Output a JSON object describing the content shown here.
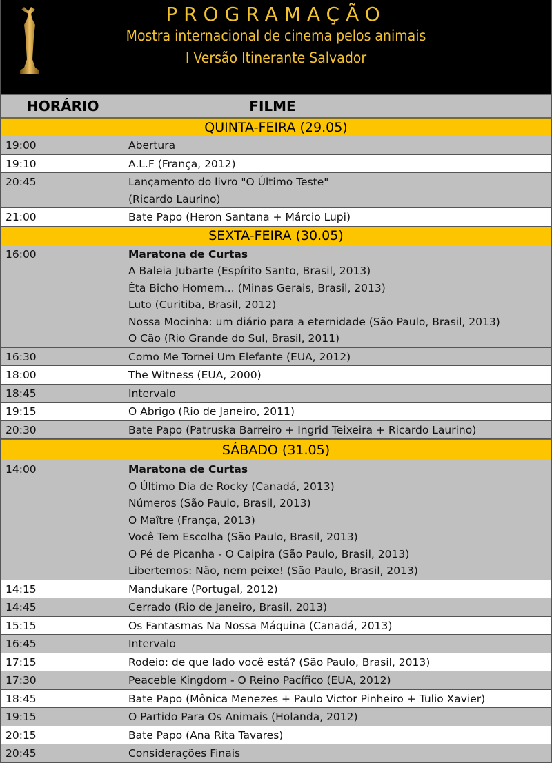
{
  "header": {
    "title": "PROGRAMAÇÃO",
    "subtitle": "Mostra internacional de cinema pelos animais",
    "edition": "I Versão Itinerante Salvador"
  },
  "columns": {
    "time": "HORÁRIO",
    "film": "FILME"
  },
  "colors": {
    "accent": "#fcc500",
    "header_bg": "#000000",
    "title_text": "#f2c12e",
    "shade": "#c0c0c0"
  },
  "days": [
    {
      "label": "QUINTA-FEIRA (29.05)",
      "rows": [
        {
          "time": "19:00",
          "shaded": true,
          "lines": [
            "Abertura"
          ]
        },
        {
          "time": "19:10",
          "shaded": false,
          "lines": [
            "A.L.F (França, 2012)"
          ]
        },
        {
          "time": "20:45",
          "shaded": true,
          "lines": [
            "Lançamento do livro \"O Último Teste\"",
            "(Ricardo Laurino)"
          ]
        },
        {
          "time": "21:00",
          "shaded": false,
          "lines": [
            "Bate Papo (Heron Santana + Márcio Lupi)"
          ]
        }
      ]
    },
    {
      "label": "SEXTA-FEIRA (30.05)",
      "rows": [
        {
          "time": "16:00",
          "shaded": true,
          "heading": "Maratona de Curtas",
          "lines": [
            "A Baleia Jubarte (Espírito Santo, Brasil, 2013)",
            "Êta Bicho Homem... (Minas Gerais, Brasil, 2013)",
            "Luto (Curitiba, Brasil, 2012)",
            "Nossa Mocinha: um diário para a eternidade (São Paulo, Brasil, 2013)",
            "O Cão (Rio Grande do Sul, Brasil, 2011)"
          ]
        },
        {
          "time": "16:30",
          "shaded": true,
          "lines": [
            "Como Me Tornei Um Elefante (EUA, 2012)"
          ]
        },
        {
          "time": "18:00",
          "shaded": false,
          "lines": [
            "The Witness (EUA, 2000)"
          ]
        },
        {
          "time": "18:45",
          "shaded": true,
          "lines": [
            "Intervalo"
          ]
        },
        {
          "time": "19:15",
          "shaded": false,
          "lines": [
            "O Abrigo (Rio de Janeiro, 2011)"
          ]
        },
        {
          "time": "20:30",
          "shaded": true,
          "lines": [
            "Bate Papo (Patruska Barreiro + Ingrid Teixeira + Ricardo Laurino)"
          ]
        }
      ]
    },
    {
      "label": "SÁBADO (31.05)",
      "rows": [
        {
          "time": "14:00",
          "shaded": true,
          "heading": "Maratona de Curtas",
          "lines": [
            "O Último Dia de Rocky (Canadá, 2013)",
            "Números (São Paulo, Brasil, 2013)",
            "O Maître (França, 2013)",
            "Você Tem Escolha (São Paulo, Brasil, 2013)",
            "O Pé de Picanha - O Caipira (São Paulo, Brasil, 2013)",
            "Libertemos: Não, nem peixe! (São Paulo, Brasil, 2013)"
          ]
        },
        {
          "time": "14:15",
          "shaded": false,
          "lines": [
            "Mandukare (Portugal, 2012)"
          ]
        },
        {
          "time": "14:45",
          "shaded": true,
          "lines": [
            "Cerrado (Rio de Janeiro, Brasil, 2013)"
          ]
        },
        {
          "time": "15:15",
          "shaded": false,
          "lines": [
            "Os Fantasmas Na Nossa Máquina (Canadá, 2013)"
          ]
        },
        {
          "time": "16:45",
          "shaded": true,
          "lines": [
            "Intervalo"
          ]
        },
        {
          "time": "17:15",
          "shaded": false,
          "lines": [
            "Rodeio: de que lado você está? (São Paulo, Brasil, 2013)"
          ]
        },
        {
          "time": "17:30",
          "shaded": true,
          "lines": [
            "Peaceble Kingdom - O Reino Pacífico (EUA, 2012)"
          ]
        },
        {
          "time": "18:45",
          "shaded": false,
          "lines": [
            "Bate Papo (Mônica Menezes + Paulo Victor Pinheiro + Tulio Xavier)"
          ]
        },
        {
          "time": "19:15",
          "shaded": true,
          "lines": [
            "O Partido Para Os Animais (Holanda, 2012)"
          ]
        },
        {
          "time": "20:15",
          "shaded": false,
          "lines": [
            "Bate Papo (Ana Rita Tavares)"
          ]
        },
        {
          "time": "20:45",
          "shaded": true,
          "lines": [
            "Considerações Finais"
          ]
        }
      ]
    }
  ]
}
